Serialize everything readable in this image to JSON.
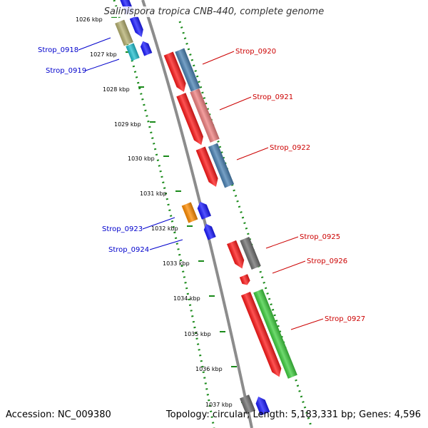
{
  "header": {
    "title": "Salinispora tropica CNB-440, complete genome"
  },
  "footer": {
    "accession": "Accession: NC_009380",
    "summary": "Topology: circular; Length: 5,183,331 bp; Genes: 4,596"
  },
  "colors": {
    "backbone": "#8c8c8c",
    "dotted_track": "#1a8a1a",
    "label_left": "#0000cc",
    "label_right": "#cc0000",
    "red": "#ff1a1a",
    "pink": "#f08080",
    "steel": "#4a82b4",
    "green": "#3fcf3f",
    "blue": "#1a1aff",
    "gray": "#707070",
    "orange": "#ff8c00",
    "olive": "#b5b070",
    "cyan": "#20c0d0"
  },
  "kbp_labels": [
    "1026 kbp",
    "1027 kbp",
    "1028 kbp",
    "1029 kbp",
    "1030 kbp",
    "1031 kbp",
    "1032 kbp",
    "1033 kbp",
    "1034 kbp",
    "1035 kbp",
    "1036 kbp",
    "1037 kbp"
  ],
  "gene_labels_left": [
    "Strop_0918",
    "Strop_0919",
    "Strop_0923",
    "Strop_0924"
  ],
  "gene_labels_right": [
    "Strop_0920",
    "Strop_0921",
    "Strop_0922",
    "Strop_0925",
    "Strop_0926",
    "Strop_0927"
  ]
}
